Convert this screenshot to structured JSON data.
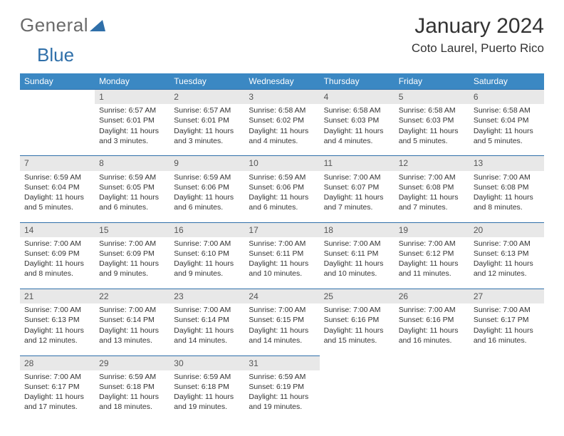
{
  "brand": {
    "part1": "General",
    "part2": "Blue"
  },
  "title": "January 2024",
  "location": "Coto Laurel, Puerto Rico",
  "colors": {
    "header_bg": "#3b88c3",
    "header_text": "#ffffff",
    "daynum_bg": "#e8e8e8",
    "rule": "#2f6fa9",
    "text": "#333333"
  },
  "weekdays": [
    "Sunday",
    "Monday",
    "Tuesday",
    "Wednesday",
    "Thursday",
    "Friday",
    "Saturday"
  ],
  "weeks": [
    [
      {
        "n": "",
        "sr": "",
        "ss": "",
        "dl": ""
      },
      {
        "n": "1",
        "sr": "6:57 AM",
        "ss": "6:01 PM",
        "dl": "11 hours and 3 minutes."
      },
      {
        "n": "2",
        "sr": "6:57 AM",
        "ss": "6:01 PM",
        "dl": "11 hours and 3 minutes."
      },
      {
        "n": "3",
        "sr": "6:58 AM",
        "ss": "6:02 PM",
        "dl": "11 hours and 4 minutes."
      },
      {
        "n": "4",
        "sr": "6:58 AM",
        "ss": "6:03 PM",
        "dl": "11 hours and 4 minutes."
      },
      {
        "n": "5",
        "sr": "6:58 AM",
        "ss": "6:03 PM",
        "dl": "11 hours and 5 minutes."
      },
      {
        "n": "6",
        "sr": "6:58 AM",
        "ss": "6:04 PM",
        "dl": "11 hours and 5 minutes."
      }
    ],
    [
      {
        "n": "7",
        "sr": "6:59 AM",
        "ss": "6:04 PM",
        "dl": "11 hours and 5 minutes."
      },
      {
        "n": "8",
        "sr": "6:59 AM",
        "ss": "6:05 PM",
        "dl": "11 hours and 6 minutes."
      },
      {
        "n": "9",
        "sr": "6:59 AM",
        "ss": "6:06 PM",
        "dl": "11 hours and 6 minutes."
      },
      {
        "n": "10",
        "sr": "6:59 AM",
        "ss": "6:06 PM",
        "dl": "11 hours and 6 minutes."
      },
      {
        "n": "11",
        "sr": "7:00 AM",
        "ss": "6:07 PM",
        "dl": "11 hours and 7 minutes."
      },
      {
        "n": "12",
        "sr": "7:00 AM",
        "ss": "6:08 PM",
        "dl": "11 hours and 7 minutes."
      },
      {
        "n": "13",
        "sr": "7:00 AM",
        "ss": "6:08 PM",
        "dl": "11 hours and 8 minutes."
      }
    ],
    [
      {
        "n": "14",
        "sr": "7:00 AM",
        "ss": "6:09 PM",
        "dl": "11 hours and 8 minutes."
      },
      {
        "n": "15",
        "sr": "7:00 AM",
        "ss": "6:09 PM",
        "dl": "11 hours and 9 minutes."
      },
      {
        "n": "16",
        "sr": "7:00 AM",
        "ss": "6:10 PM",
        "dl": "11 hours and 9 minutes."
      },
      {
        "n": "17",
        "sr": "7:00 AM",
        "ss": "6:11 PM",
        "dl": "11 hours and 10 minutes."
      },
      {
        "n": "18",
        "sr": "7:00 AM",
        "ss": "6:11 PM",
        "dl": "11 hours and 10 minutes."
      },
      {
        "n": "19",
        "sr": "7:00 AM",
        "ss": "6:12 PM",
        "dl": "11 hours and 11 minutes."
      },
      {
        "n": "20",
        "sr": "7:00 AM",
        "ss": "6:13 PM",
        "dl": "11 hours and 12 minutes."
      }
    ],
    [
      {
        "n": "21",
        "sr": "7:00 AM",
        "ss": "6:13 PM",
        "dl": "11 hours and 12 minutes."
      },
      {
        "n": "22",
        "sr": "7:00 AM",
        "ss": "6:14 PM",
        "dl": "11 hours and 13 minutes."
      },
      {
        "n": "23",
        "sr": "7:00 AM",
        "ss": "6:14 PM",
        "dl": "11 hours and 14 minutes."
      },
      {
        "n": "24",
        "sr": "7:00 AM",
        "ss": "6:15 PM",
        "dl": "11 hours and 14 minutes."
      },
      {
        "n": "25",
        "sr": "7:00 AM",
        "ss": "6:16 PM",
        "dl": "11 hours and 15 minutes."
      },
      {
        "n": "26",
        "sr": "7:00 AM",
        "ss": "6:16 PM",
        "dl": "11 hours and 16 minutes."
      },
      {
        "n": "27",
        "sr": "7:00 AM",
        "ss": "6:17 PM",
        "dl": "11 hours and 16 minutes."
      }
    ],
    [
      {
        "n": "28",
        "sr": "7:00 AM",
        "ss": "6:17 PM",
        "dl": "11 hours and 17 minutes."
      },
      {
        "n": "29",
        "sr": "6:59 AM",
        "ss": "6:18 PM",
        "dl": "11 hours and 18 minutes."
      },
      {
        "n": "30",
        "sr": "6:59 AM",
        "ss": "6:18 PM",
        "dl": "11 hours and 19 minutes."
      },
      {
        "n": "31",
        "sr": "6:59 AM",
        "ss": "6:19 PM",
        "dl": "11 hours and 19 minutes."
      },
      {
        "n": "",
        "sr": "",
        "ss": "",
        "dl": ""
      },
      {
        "n": "",
        "sr": "",
        "ss": "",
        "dl": ""
      },
      {
        "n": "",
        "sr": "",
        "ss": "",
        "dl": ""
      }
    ]
  ],
  "labels": {
    "sunrise": "Sunrise:",
    "sunset": "Sunset:",
    "daylight": "Daylight:"
  }
}
